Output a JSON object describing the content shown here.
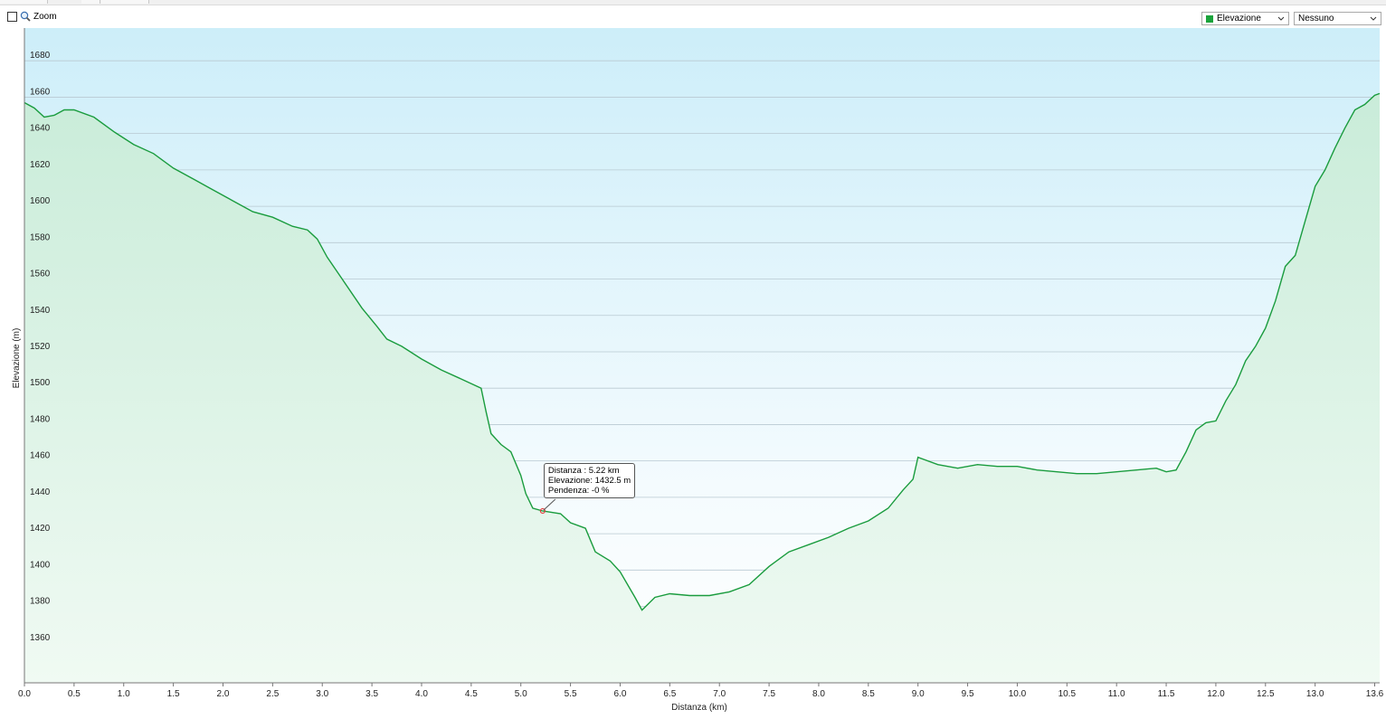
{
  "toolbar": {
    "zoom_label": "Zoom",
    "zoom_checked": false,
    "series_select": {
      "value": "Elevazione",
      "swatch_color": "#1aa33b"
    },
    "overlay_select": {
      "value": "Nessuno"
    }
  },
  "tooltip": {
    "distance": "Distanza  : 5.22 km",
    "elevation": "Elevazione: 1432.5 m",
    "slope": "Pendenza: -0 %",
    "point": {
      "x": 5.22,
      "y": 1432.5
    }
  },
  "chart_data": {
    "type": "area",
    "xlabel": "Distanza  (km)",
    "ylabel": "Elevazione (m)",
    "xlim": [
      0,
      13.65
    ],
    "ylim": [
      1338,
      1698
    ],
    "xticks": [
      "0.0",
      "0.5",
      "1.0",
      "1.5",
      "2.0",
      "2.5",
      "3.0",
      "3.5",
      "4.0",
      "4.5",
      "5.0",
      "5.5",
      "6.0",
      "6.5",
      "7.0",
      "7.5",
      "8.0",
      "8.5",
      "9.0",
      "9.5",
      "10.0",
      "10.5",
      "11.0",
      "11.5",
      "12.0",
      "12.5",
      "13.0",
      "13.6"
    ],
    "xtick_values": [
      0,
      0.5,
      1,
      1.5,
      2,
      2.5,
      3,
      3.5,
      4,
      4.5,
      5,
      5.5,
      6,
      6.5,
      7,
      7.5,
      8,
      8.5,
      9,
      9.5,
      10,
      10.5,
      11,
      11.5,
      12,
      12.5,
      13,
      13.6
    ],
    "yticks": [
      "1360",
      "1380",
      "1400",
      "1420",
      "1440",
      "1460",
      "1480",
      "1500",
      "1520",
      "1540",
      "1560",
      "1580",
      "1600",
      "1620",
      "1640",
      "1660",
      "1680"
    ],
    "ytick_values": [
      1360,
      1380,
      1400,
      1420,
      1440,
      1460,
      1480,
      1500,
      1520,
      1540,
      1560,
      1580,
      1600,
      1620,
      1640,
      1660,
      1680
    ],
    "grid": true,
    "line_color": "#1a9c3e",
    "series": [
      {
        "x": [
          0,
          0.1,
          0.2,
          0.3,
          0.4,
          0.5,
          0.7,
          0.9,
          1.1,
          1.3,
          1.5,
          1.7,
          1.9,
          2.1,
          2.3,
          2.5,
          2.7,
          2.85,
          2.95,
          3.05,
          3.2,
          3.4,
          3.55,
          3.65,
          3.8,
          4.0,
          4.2,
          4.4,
          4.6,
          4.65,
          4.7,
          4.8,
          4.9,
          5.0,
          5.05,
          5.12,
          5.22,
          5.4,
          5.5,
          5.65,
          5.75,
          5.9,
          6.0,
          6.15,
          6.22,
          6.35,
          6.5,
          6.7,
          6.9,
          7.1,
          7.3,
          7.5,
          7.7,
          7.9,
          8.1,
          8.3,
          8.5,
          8.7,
          8.85,
          8.95,
          9.0,
          9.2,
          9.4,
          9.6,
          9.8,
          10.0,
          10.2,
          10.4,
          10.6,
          10.8,
          11.0,
          11.2,
          11.4,
          11.5,
          11.6,
          11.7,
          11.8,
          11.9,
          12.0,
          12.1,
          12.2,
          12.3,
          12.4,
          12.5,
          12.6,
          12.7,
          12.8,
          12.9,
          13.0,
          13.1,
          13.2,
          13.3,
          13.4,
          13.5,
          13.6,
          13.65
        ],
        "y": [
          1657,
          1654,
          1649,
          1650,
          1653,
          1653,
          1649,
          1641,
          1634,
          1629,
          1621,
          1615,
          1609,
          1603,
          1597,
          1594,
          1589,
          1587,
          1582,
          1572,
          1560,
          1544,
          1534,
          1527,
          1523,
          1516,
          1510,
          1505,
          1500,
          1487,
          1475,
          1469,
          1465,
          1452,
          1442,
          1434,
          1432.5,
          1431,
          1426,
          1423,
          1410,
          1405,
          1399,
          1385,
          1378,
          1385,
          1387,
          1386,
          1386,
          1388,
          1392,
          1402,
          1410,
          1414,
          1418,
          1423,
          1427,
          1434,
          1444,
          1450,
          1462,
          1458,
          1456,
          1458,
          1457,
          1457,
          1455,
          1454,
          1453,
          1453,
          1454,
          1455,
          1456,
          1454,
          1455,
          1465,
          1477,
          1481,
          1482,
          1493,
          1502,
          1515,
          1523,
          1533,
          1548,
          1567,
          1573,
          1592,
          1611,
          1620,
          1632,
          1643,
          1653,
          1656,
          1661,
          1662
        ]
      }
    ]
  }
}
